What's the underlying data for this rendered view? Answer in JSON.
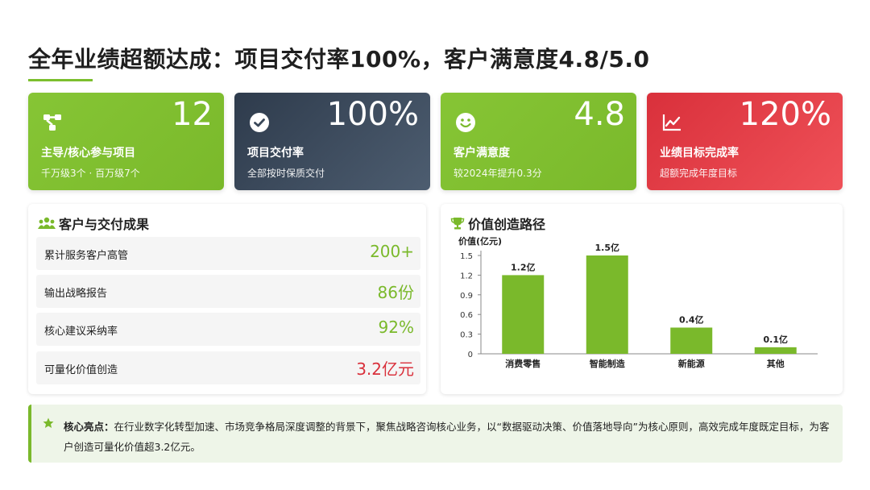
{
  "header": {
    "title": "全年业绩超额达成：项目交付率100%，客户满意度4.8/5.0"
  },
  "cards": [
    {
      "value": "12",
      "label": "主导/核心参与项目",
      "sub": "千万级3个 · 百万级7个",
      "icon": "project-network-icon"
    },
    {
      "value": "100%",
      "label": "项目交付率",
      "sub": "全部按时保质交付",
      "icon": "check-circle-icon"
    },
    {
      "value": "4.8",
      "label": "客户满意度",
      "sub": "较2024年提升0.3分",
      "icon": "smile-icon"
    },
    {
      "value": "120%",
      "label": "业绩目标完成率",
      "sub": "超额完成年度目标",
      "icon": "trend-chart-icon"
    }
  ],
  "clients": {
    "title": "客户与交付成果",
    "rows": [
      {
        "label": "累计服务客户高管",
        "value": "200+"
      },
      {
        "label": "输出战略报告",
        "value": "86份"
      },
      {
        "label": "核心建议采纳率",
        "value": "92%"
      },
      {
        "label": "可量化价值创造",
        "value": "3.2亿元"
      }
    ]
  },
  "value_panel": {
    "title": "价值创造路径"
  },
  "chart_data": {
    "type": "bar",
    "ylabel": "价值(亿元)",
    "categories": [
      "消费零售",
      "智能制造",
      "新能源",
      "其他"
    ],
    "values": [
      1.2,
      1.5,
      0.4,
      0.1
    ],
    "data_labels": [
      "1.2亿",
      "1.5亿",
      "0.4亿",
      "0.1亿"
    ],
    "yticks": [
      "0",
      "0.3",
      "0.6",
      "0.9",
      "1.2",
      "1.5"
    ],
    "ylim": [
      0,
      1.5
    ],
    "color": "#7ab92b",
    "grid": false
  },
  "highlight": {
    "label": "核心亮点：",
    "text": "在行业数字化转型加速、市场竞争格局深度调整的背景下，聚焦战略咨询核心业务，以“数据驱动决策、价值落地导向”为核心原则，高效完成年度既定目标，为客户创造可量化价值超3.2亿元。"
  },
  "colors": {
    "accent": "#7ab92b",
    "dark": "#2e3b4c",
    "red": "#d9303b"
  }
}
